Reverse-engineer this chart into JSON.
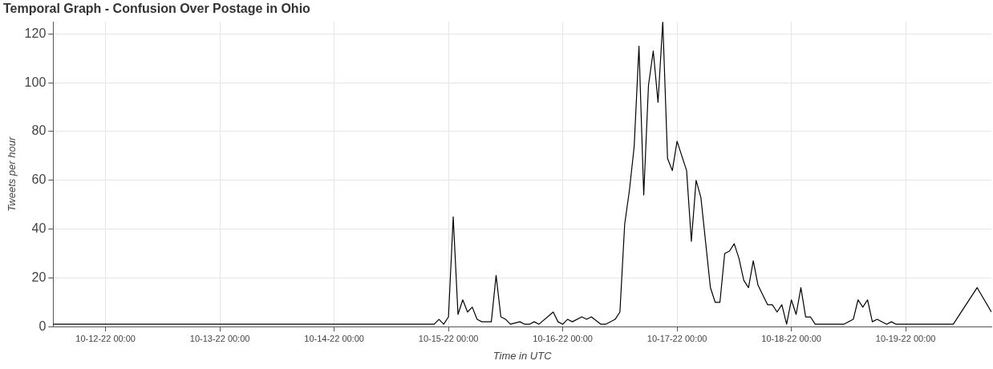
{
  "chart_data": {
    "type": "line",
    "title": "Temporal Graph - Confusion Over Postage in Ohio",
    "xlabel": "Time in UTC",
    "ylabel": "Tweets per hour",
    "color": "#000000",
    "grid": true,
    "legend": false,
    "marker": "none",
    "line_style": "solid",
    "xlim": [
      "--10-11T13:00",
      "--10-19T18:00"
    ],
    "xticks": [
      {
        "value": "--10-12T00:00",
        "label": "10-12-22 00:00"
      },
      {
        "value": "--10-13T00:00",
        "label": "10-13-22 00:00"
      },
      {
        "value": "--10-14T00:00",
        "label": "10-14-22 00:00"
      },
      {
        "value": "--10-15T00:00",
        "label": "10-15-22 00:00"
      },
      {
        "value": "--10-16T00:00",
        "label": "10-16-22 00:00"
      },
      {
        "value": "--10-17T00:00",
        "label": "10-17-22 00:00"
      },
      {
        "value": "--10-18T00:00",
        "label": "10-18-22 00:00"
      },
      {
        "value": "--10-19T00:00",
        "label": "10-19-22 00:00"
      }
    ],
    "ylim": [
      0,
      125
    ],
    "yticks": [
      0,
      20,
      40,
      60,
      80,
      100,
      120
    ],
    "x": [
      "--10-11T13:00",
      "--10-14T21:00",
      "--10-14T22:00",
      "--10-14T23:00",
      "--10-15T00:00",
      "--10-15T01:00",
      "--10-15T02:00",
      "--10-15T03:00",
      "--10-15T04:00",
      "--10-15T05:00",
      "--10-15T06:00",
      "--10-15T07:00",
      "--10-15T09:00",
      "--10-15T10:00",
      "--10-15T11:00",
      "--10-15T12:00",
      "--10-15T13:00",
      "--10-15T15:00",
      "--10-15T16:00",
      "--10-15T17:00",
      "--10-15T18:00",
      "--10-15T19:00",
      "--10-15T22:00",
      "--10-15T23:00",
      "--10-16T00:00",
      "--10-16T01:00",
      "--10-16T02:00",
      "--10-16T04:00",
      "--10-16T05:00",
      "--10-16T06:00",
      "--10-16T08:00",
      "--10-16T09:00",
      "--10-16T11:00",
      "--10-16T12:00",
      "--10-16T13:00",
      "--10-16T14:00",
      "--10-16T15:00",
      "--10-16T16:00",
      "--10-16T17:00",
      "--10-16T18:00",
      "--10-16T19:00",
      "--10-16T20:00",
      "--10-16T21:00",
      "--10-16T22:00",
      "--10-16T23:00",
      "--10-17T00:00",
      "--10-17T02:00",
      "--10-17T03:00",
      "--10-17T04:00",
      "--10-17T05:00",
      "--10-17T07:00",
      "--10-17T08:00",
      "--10-17T09:00",
      "--10-17T10:00",
      "--10-17T11:00",
      "--10-17T12:00",
      "--10-17T13:00",
      "--10-17T14:00",
      "--10-17T15:00",
      "--10-17T16:00",
      "--10-17T17:00",
      "--10-17T18:00",
      "--10-17T19:00",
      "--10-17T20:00",
      "--10-17T21:00",
      "--10-17T22:00",
      "--10-17T23:00",
      "--10-18T00:00",
      "--10-18T01:00",
      "--10-18T02:00",
      "--10-18T03:00",
      "--10-18T04:00",
      "--10-18T05:00",
      "--10-18T11:00",
      "--10-18T13:00",
      "--10-18T14:00",
      "--10-18T15:00",
      "--10-18T16:00",
      "--10-18T17:00",
      "--10-18T18:00",
      "--10-18T20:00",
      "--10-18T21:00",
      "--10-18T22:00",
      "--10-19T10:00",
      "--10-19T15:00",
      "--10-19T18:00"
    ],
    "values": [
      1,
      1,
      3,
      1,
      4,
      45,
      5,
      11,
      6,
      8,
      3,
      2,
      2,
      21,
      4,
      3,
      1,
      2,
      1,
      1,
      2,
      1,
      6,
      2,
      1,
      3,
      2,
      4,
      3,
      4,
      1,
      1,
      3,
      6,
      42,
      56,
      74,
      115,
      54,
      99,
      113,
      92,
      125,
      69,
      64,
      76,
      64,
      35,
      60,
      53,
      16,
      10,
      10,
      30,
      31,
      34,
      28,
      19,
      16,
      27,
      17,
      13,
      9,
      9,
      6,
      9,
      1,
      11,
      5,
      16,
      4,
      4,
      1,
      1,
      3,
      11,
      8,
      11,
      2,
      3,
      1,
      2,
      1,
      1,
      16,
      6
    ]
  }
}
